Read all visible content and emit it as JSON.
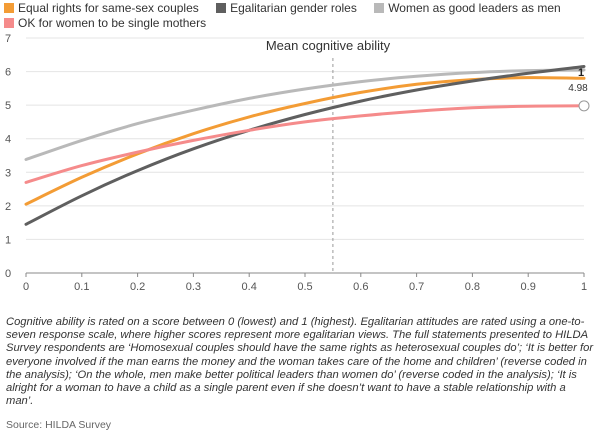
{
  "chart_data": {
    "type": "line",
    "title": "Mean cognitive ability",
    "xlabel": "",
    "ylabel": "",
    "x": [
      0,
      0.1,
      0.2,
      0.3,
      0.4,
      0.5,
      0.6,
      0.7,
      0.8,
      0.9,
      1
    ],
    "x_ticks": [
      "0",
      "0.1",
      "0.2",
      "0.3",
      "0.4",
      "0.5",
      "0.6",
      "0.7",
      "0.8",
      "0.9",
      "1"
    ],
    "y_ticks": [
      "0",
      "1",
      "2",
      "3",
      "4",
      "5",
      "6",
      "7"
    ],
    "xlim": [
      0,
      1
    ],
    "ylim": [
      0,
      7
    ],
    "grid": true,
    "legend_position": "top",
    "marker_x": 0.55,
    "series": [
      {
        "name": "Equal rights for same-sex couples",
        "color": "#f39c35",
        "values": [
          2.05,
          2.85,
          3.55,
          4.15,
          4.65,
          5.05,
          5.38,
          5.62,
          5.76,
          5.82,
          5.8
        ]
      },
      {
        "name": "Egalitarian gender roles",
        "color": "#5f5f5f",
        "values": [
          1.45,
          2.3,
          3.05,
          3.7,
          4.25,
          4.72,
          5.12,
          5.45,
          5.72,
          5.95,
          6.15
        ]
      },
      {
        "name": "Women as good leaders as men",
        "color": "#b9b9b9",
        "values": [
          3.38,
          3.95,
          4.45,
          4.85,
          5.2,
          5.48,
          5.7,
          5.86,
          5.97,
          6.03,
          6.05
        ]
      },
      {
        "name": "OK for women to be single mothers",
        "color": "#f58b8b",
        "values": [
          2.7,
          3.2,
          3.6,
          3.95,
          4.25,
          4.5,
          4.68,
          4.82,
          4.92,
          4.97,
          4.98
        ]
      }
    ],
    "annotations": [
      {
        "text": "1",
        "x": 1,
        "y": 6.05
      },
      {
        "text": "4.98",
        "x": 1,
        "y": 4.98
      }
    ]
  },
  "caption": "Cognitive ability is rated on a score between 0 (lowest) and 1 (highest). Egalitarian attitudes are rated using a one-to-seven response scale, where higher scores represent more egalitarian views. The full statements presented to HILDA Survey respondents are ‘Homosexual couples should have the same rights as heterosexual couples do’; ‘It is better for everyone involved if the man earns the money and the woman takes care of the home and children’ (reverse coded in the analysis); ‘On the whole, men make better political leaders than women do’ (reverse coded in the analysis); ‘It is alright for a woman to have a child as a single parent even if she doesn’t want to have a stable relationship with a man’.",
  "source": "Source: HILDA Survey"
}
